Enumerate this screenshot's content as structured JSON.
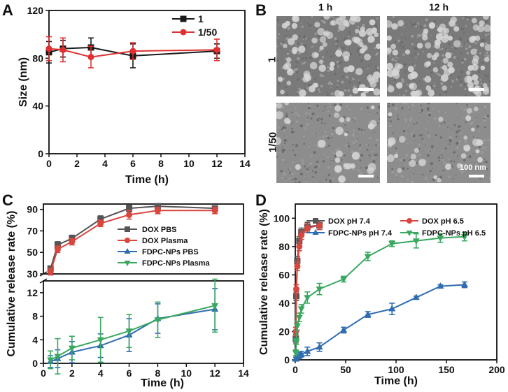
{
  "panels": {
    "a": "A",
    "b": "B",
    "c": "C",
    "d": "D"
  },
  "tem": {
    "col_labels": [
      "1 h",
      "12 h"
    ],
    "row_labels": [
      "1",
      "1/50"
    ],
    "scale_label": "100 nm"
  },
  "chart_data": [
    {
      "id": "A",
      "type": "line",
      "xlabel": "Time (h)",
      "ylabel": "Size (nm)",
      "xlim": [
        0,
        14
      ],
      "ylim": [
        0,
        120
      ],
      "xticks": [
        0,
        2,
        4,
        6,
        8,
        10,
        12,
        14
      ],
      "yticks": [
        0,
        40,
        80,
        120
      ],
      "legend_position": "top-right",
      "series": [
        {
          "name": "1",
          "color": "#1a1a1a",
          "marker": "square",
          "x": [
            0,
            1,
            3,
            6,
            12
          ],
          "y": [
            85,
            88,
            89,
            82,
            86
          ],
          "err": [
            9,
            7,
            8,
            10,
            6
          ]
        },
        {
          "name": "1/50",
          "color": "#e03030",
          "marker": "circle",
          "x": [
            0,
            1,
            3,
            6,
            12
          ],
          "y": [
            88,
            87,
            81,
            86,
            87
          ],
          "err": [
            10,
            10,
            9,
            7,
            9
          ]
        }
      ]
    },
    {
      "id": "C",
      "type": "line",
      "xlabel": "Time (h)",
      "ylabel": "Cumulative release rate (%)",
      "xlim": [
        0,
        14
      ],
      "xticks": [
        0,
        2,
        4,
        6,
        8,
        10,
        12,
        14
      ],
      "axis_break": true,
      "upper_ylim": [
        30,
        95
      ],
      "upper_yticks": [
        30,
        50,
        70,
        90
      ],
      "lower_ylim": [
        0,
        14
      ],
      "lower_yticks": [
        0,
        4,
        8,
        12
      ],
      "legend_position": "center-right",
      "series": [
        {
          "name": "DOX PBS",
          "color": "#555555",
          "marker": "square",
          "segment": "upper",
          "x": [
            0.5,
            1,
            2,
            4,
            6,
            8,
            12
          ],
          "y": [
            35,
            57,
            63,
            81,
            91,
            93,
            91
          ],
          "err": [
            2,
            3,
            3,
            3,
            3,
            2,
            2
          ]
        },
        {
          "name": "DOX Plasma",
          "color": "#d9463e",
          "marker": "circle",
          "segment": "upper",
          "x": [
            0.5,
            1,
            2,
            4,
            6,
            8,
            12
          ],
          "y": [
            32,
            53,
            60,
            77,
            85,
            89,
            89
          ],
          "err": [
            3,
            3,
            3,
            3,
            4,
            3,
            3
          ]
        },
        {
          "name": "FDPC-NPs PBS",
          "color": "#2f6db0",
          "marker": "triangle-up",
          "segment": "lower",
          "x": [
            0.5,
            1,
            2,
            4,
            6,
            8,
            12
          ],
          "y": [
            0.3,
            0.8,
            1.9,
            3.0,
            4.8,
            7.6,
            9.2
          ],
          "err": [
            1.0,
            1.5,
            1.8,
            2.0,
            2.8,
            2.5,
            3.5
          ]
        },
        {
          "name": "FDPC-NPs Plasma",
          "color": "#3aa860",
          "marker": "triangle-down",
          "segment": "lower",
          "x": [
            0.5,
            1,
            2,
            4,
            6,
            8,
            12
          ],
          "y": [
            0.6,
            1.2,
            2.6,
            4.0,
            5.5,
            7.4,
            9.8
          ],
          "err": [
            1.5,
            3.0,
            2.0,
            3.8,
            2.8,
            3.0,
            4.5
          ]
        }
      ]
    },
    {
      "id": "D",
      "type": "line",
      "xlabel": "Time (h)",
      "ylabel": "Cumulative release rate (%)",
      "xlim": [
        0,
        200
      ],
      "ylim": [
        0,
        110
      ],
      "xticks": [
        0,
        50,
        100,
        150,
        200
      ],
      "yticks": [
        0,
        20,
        40,
        60,
        80,
        100
      ],
      "legend_position": "top",
      "series": [
        {
          "name": "DOX pH 7.4",
          "color": "#555555",
          "marker": "square",
          "x": [
            0.5,
            1,
            2,
            4,
            6,
            12,
            24
          ],
          "y": [
            15,
            45,
            70,
            84,
            90,
            94,
            95
          ],
          "err": [
            3,
            3,
            3,
            3,
            3,
            3,
            3
          ]
        },
        {
          "name": "DOX pH 6.5",
          "color": "#d9463e",
          "marker": "circle",
          "x": [
            0.5,
            1,
            2,
            4,
            6,
            12,
            24
          ],
          "y": [
            20,
            50,
            66,
            80,
            88,
            93,
            95
          ],
          "err": [
            3,
            3,
            3,
            3,
            3,
            3,
            3
          ]
        },
        {
          "name": "FDPC-NPs pH 7.4",
          "color": "#2f6db0",
          "marker": "triangle-up",
          "x": [
            0.5,
            1,
            2,
            4,
            6,
            12,
            24,
            48,
            72,
            96,
            120,
            144,
            168
          ],
          "y": [
            0.5,
            1,
            2,
            3,
            4,
            6,
            9,
            21,
            32,
            36,
            44,
            52,
            53
          ],
          "err": [
            1,
            1,
            1,
            2,
            2,
            3,
            3,
            2,
            2,
            4,
            1,
            1,
            2
          ]
        },
        {
          "name": "FDPC-NPs pH 6.5",
          "color": "#3aa860",
          "marker": "triangle-down",
          "x": [
            0.5,
            1,
            2,
            4,
            6,
            12,
            24,
            48,
            72,
            96,
            120,
            144,
            168
          ],
          "y": [
            5,
            13,
            24,
            30,
            36,
            44,
            50,
            57,
            73,
            82,
            84,
            86,
            87
          ],
          "err": [
            2,
            2,
            3,
            3,
            3,
            4,
            4,
            2,
            3,
            2,
            5,
            3,
            3
          ]
        }
      ]
    }
  ]
}
